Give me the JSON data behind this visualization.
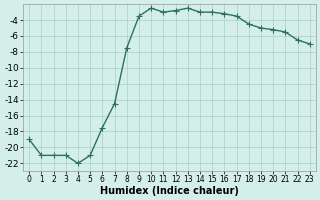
{
  "x": [
    0,
    1,
    2,
    3,
    4,
    5,
    6,
    7,
    8,
    9,
    10,
    11,
    12,
    13,
    14,
    15,
    16,
    17,
    18,
    19,
    20,
    21,
    22,
    23
  ],
  "y": [
    -19,
    -21,
    -21,
    -21,
    -22,
    -21,
    -17.5,
    -14.5,
    -7.5,
    -3.5,
    -2.5,
    -3,
    -2.8,
    -2.5,
    -3,
    -3,
    -3.2,
    -3.5,
    -4.5,
    -5,
    -5.2,
    -5.5,
    -6.5,
    -7
  ],
  "line_color": "#2d7061",
  "marker": "+",
  "marker_size": 4,
  "marker_linewidth": 0.8,
  "bg_color": "#d4eeea",
  "grid_color": "#aed4ce",
  "xlabel": "Humidex (Indice chaleur)",
  "xlim": [
    -0.5,
    23.5
  ],
  "ylim": [
    -23,
    -2
  ],
  "yticks": [
    -22,
    -20,
    -18,
    -16,
    -14,
    -12,
    -10,
    -8,
    -6,
    -4
  ],
  "xticks": [
    0,
    1,
    2,
    3,
    4,
    5,
    6,
    7,
    8,
    9,
    10,
    11,
    12,
    13,
    14,
    15,
    16,
    17,
    18,
    19,
    20,
    21,
    22,
    23
  ],
  "xlabel_fontsize": 7,
  "ytick_fontsize": 6.5,
  "xtick_fontsize": 5.5,
  "linewidth": 1.0
}
